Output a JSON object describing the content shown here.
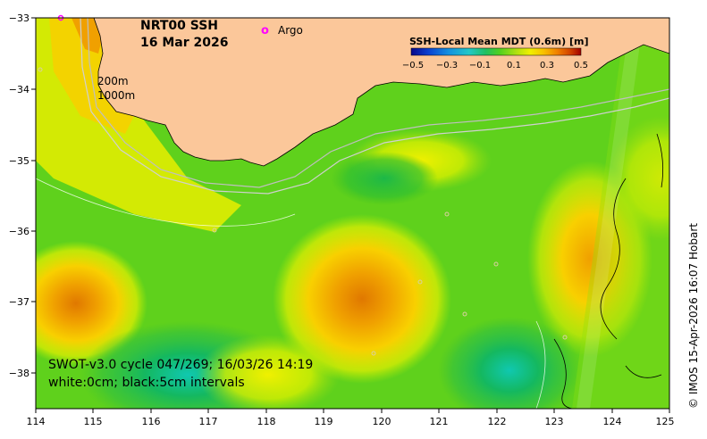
{
  "title": {
    "line1": "NRT00 SSH",
    "line2": "16 Mar 2026"
  },
  "legend": {
    "argo_symbol": "o",
    "argo_label": "Argo"
  },
  "colorbar": {
    "title": "SSH-Local Mean MDT (0.6m) [m]",
    "ticks": [
      "−0.5",
      "−0.3",
      "−0.1",
      "0.1",
      "0.3",
      "0.5"
    ],
    "colors": [
      "#08088a",
      "#0a3fd0",
      "#1490e0",
      "#22c8c8",
      "#20c060",
      "#50d020",
      "#b0e010",
      "#f0f000",
      "#f8c000",
      "#f08000",
      "#d04000",
      "#a00000"
    ]
  },
  "isobaths": {
    "label_200": "200m",
    "label_1000": "1000m"
  },
  "axes": {
    "x_ticks": [
      "114",
      "115",
      "116",
      "117",
      "118",
      "119",
      "120",
      "121",
      "122",
      "123",
      "124",
      "125"
    ],
    "y_ticks": [
      "−33",
      "−34",
      "−35",
      "−36",
      "−37",
      "−38"
    ]
  },
  "caption": {
    "line1": "SWOT-v3.0 cycle 047/269; 16/03/26 14:19",
    "line2": "white:0cm; black:5cm intervals"
  },
  "credit": "© IMOS 15-Apr-2026 16:07 Hobart",
  "colors": {
    "land": "#fbc79a",
    "sea_base": "#5fd11c",
    "argo": "#ff00ff"
  }
}
